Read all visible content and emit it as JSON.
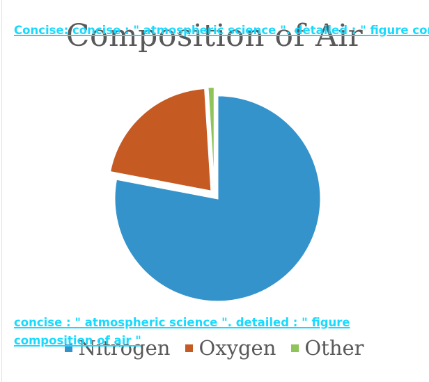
{
  "chart_data": {
    "type": "pie",
    "title": "Composition of Air",
    "slices": [
      {
        "label": "Nitrogen",
        "value": 78,
        "color": "#3593cc"
      },
      {
        "label": "Oxygen",
        "value": 21,
        "color": "#c55a22"
      },
      {
        "label": "Other",
        "value": 1,
        "color": "#8fc45a"
      }
    ],
    "legend_position": "bottom"
  },
  "annotations": {
    "top": "Concise: concise : \" atmospheric science \". detailed : \" figure composition of air \"",
    "bottom_line1": "concise : \" atmospheric science \". detailed : \" figure",
    "bottom_line2": "composition of air \""
  }
}
